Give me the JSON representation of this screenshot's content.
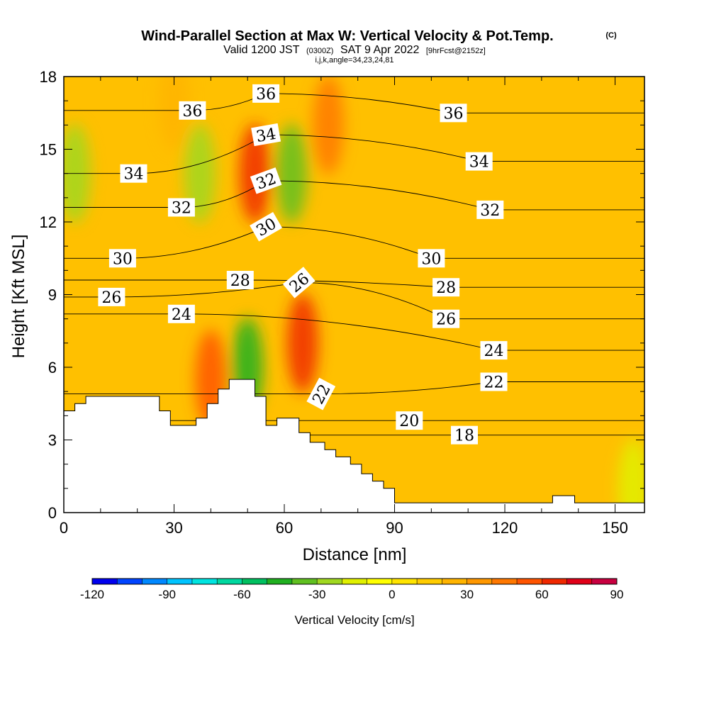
{
  "header": {
    "title": "Wind-Parallel Section at Max W: Vertical Velocity & Pot.Temp.",
    "copyright": "(C)",
    "valid_prefix": "Valid 1200 JST",
    "valid_utc": "(0300Z)",
    "valid_date": "SAT 9 Apr 2022",
    "forecast": "[9hrFcst@2152z]",
    "indices": "i,j,k,angle=34,23,24,81"
  },
  "colorbar": {
    "label": "Vertical Velocity [cm/s]",
    "min": -120,
    "max": 90,
    "step": 10,
    "ticks": [
      "-120",
      "-90",
      "-60",
      "-30",
      "0",
      "30",
      "60",
      "90"
    ],
    "colors": [
      "#0000ee",
      "#0044ff",
      "#0088ff",
      "#00c4ff",
      "#00e4e0",
      "#00d8a0",
      "#00c060",
      "#20b020",
      "#60c020",
      "#a0d820",
      "#e0f000",
      "#ffff00",
      "#ffe400",
      "#ffcc00",
      "#ffb400",
      "#ff9800",
      "#ff7800",
      "#ff5400",
      "#f02800",
      "#e00018",
      "#c80040",
      "#a80060",
      "#880078"
    ]
  },
  "chart_data": {
    "type": "heatmap",
    "xlabel": "Distance [nm]",
    "ylabel": "Height [Kft MSL]",
    "xlim": [
      0,
      158
    ],
    "ylim": [
      0,
      18
    ],
    "xticks": [
      "0",
      "30",
      "60",
      "90",
      "120",
      "150"
    ],
    "yticks": [
      "0",
      "3",
      "6",
      "9",
      "12",
      "15",
      "18"
    ],
    "field": "vertical velocity [cm/s]",
    "field_features": [
      {
        "x": 52,
        "y": 14,
        "w": 60,
        "note": "updraft column"
      },
      {
        "x": 65,
        "y": 7,
        "w": 65
      },
      {
        "x": 72,
        "y": 16,
        "w": 45
      },
      {
        "x": 50,
        "y": 6,
        "w": -50,
        "note": "downdraft"
      },
      {
        "x": 62,
        "y": 14,
        "w": -40
      },
      {
        "x": 37,
        "y": 14,
        "w": -30
      },
      {
        "x": 3,
        "y": 14,
        "w": -25
      },
      {
        "x": 40,
        "y": 5.5,
        "w": 55
      },
      {
        "x": 30,
        "y": 17,
        "w": 20
      },
      {
        "x": 155,
        "y": 1,
        "w": -20
      }
    ],
    "terrain_kft": [
      [
        0,
        4.2
      ],
      [
        3,
        4.2
      ],
      [
        3,
        4.5
      ],
      [
        6,
        4.5
      ],
      [
        6,
        4.8
      ],
      [
        26,
        4.8
      ],
      [
        26,
        4.2
      ],
      [
        29,
        4.2
      ],
      [
        29,
        3.6
      ],
      [
        36,
        3.6
      ],
      [
        36,
        3.9
      ],
      [
        39,
        3.9
      ],
      [
        39,
        4.5
      ],
      [
        42,
        4.5
      ],
      [
        42,
        5.1
      ],
      [
        45,
        5.1
      ],
      [
        45,
        5.5
      ],
      [
        52,
        5.5
      ],
      [
        52,
        4.8
      ],
      [
        55,
        4.8
      ],
      [
        55,
        3.6
      ],
      [
        58,
        3.6
      ],
      [
        58,
        3.9
      ],
      [
        64,
        3.9
      ],
      [
        64,
        3.3
      ],
      [
        67,
        3.3
      ],
      [
        67,
        2.9
      ],
      [
        71,
        2.9
      ],
      [
        71,
        2.6
      ],
      [
        74,
        2.6
      ],
      [
        74,
        2.3
      ],
      [
        78,
        2.3
      ],
      [
        78,
        2.0
      ],
      [
        81,
        2.0
      ],
      [
        81,
        1.6
      ],
      [
        84,
        1.6
      ],
      [
        84,
        1.3
      ],
      [
        87,
        1.3
      ],
      [
        87,
        1.0
      ],
      [
        90,
        1.0
      ],
      [
        90,
        0.4
      ],
      [
        133,
        0.4
      ],
      [
        133,
        0.7
      ],
      [
        139,
        0.7
      ],
      [
        139,
        0.4
      ],
      [
        158,
        0.4
      ]
    ],
    "theta_contours": [
      {
        "label": "18",
        "label_x": 109,
        "label_y": 3.2
      },
      {
        "label": "20",
        "label_x": 94,
        "label_y": 3.8
      },
      {
        "label": "22",
        "label_x": 117,
        "label_y": 5.4
      },
      {
        "label": "22",
        "label_x": 70,
        "label_y": 4.9,
        "rot": -62
      },
      {
        "label": "24",
        "label_x": 117,
        "label_y": 6.7
      },
      {
        "label": "24",
        "label_x": 32,
        "label_y": 8.2
      },
      {
        "label": "26",
        "label_x": 104,
        "label_y": 8.0
      },
      {
        "label": "26",
        "label_x": 13,
        "label_y": 8.9
      },
      {
        "label": "26",
        "label_x": 64,
        "label_y": 9.5,
        "rot": -40
      },
      {
        "label": "28",
        "label_x": 104,
        "label_y": 9.3
      },
      {
        "label": "28",
        "label_x": 48,
        "label_y": 9.6
      },
      {
        "label": "30",
        "label_x": 100,
        "label_y": 10.5
      },
      {
        "label": "30",
        "label_x": 16,
        "label_y": 10.5
      },
      {
        "label": "30",
        "label_x": 55,
        "label_y": 11.8,
        "rot": -30
      },
      {
        "label": "32",
        "label_x": 116,
        "label_y": 12.5
      },
      {
        "label": "32",
        "label_x": 32,
        "label_y": 12.6
      },
      {
        "label": "32",
        "label_x": 55,
        "label_y": 13.7,
        "rot": -20
      },
      {
        "label": "34",
        "label_x": 113,
        "label_y": 14.5
      },
      {
        "label": "34",
        "label_x": 19,
        "label_y": 14.0
      },
      {
        "label": "34",
        "label_x": 55,
        "label_y": 15.6,
        "rot": -10
      },
      {
        "label": "36",
        "label_x": 106,
        "label_y": 16.5
      },
      {
        "label": "36",
        "label_x": 35,
        "label_y": 16.6
      },
      {
        "label": "36",
        "label_x": 55,
        "label_y": 17.3
      }
    ]
  }
}
